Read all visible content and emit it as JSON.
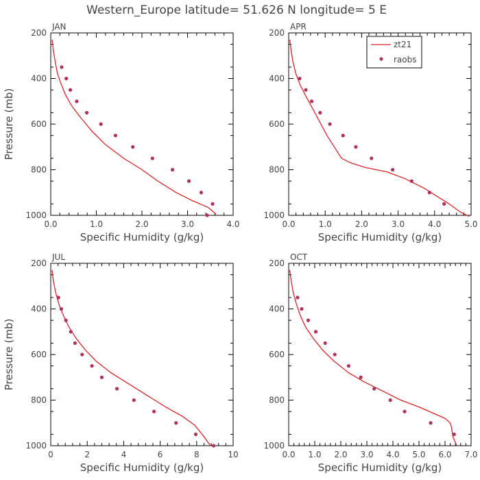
{
  "figure": {
    "title": "Western_Europe  latitude= 51.626 N longitude= 5 E"
  },
  "legend": {
    "position": "top-right of APR panel",
    "items": [
      {
        "label": "zt21",
        "kind": "line",
        "color": "#dd2222"
      },
      {
        "label": "raobs",
        "kind": "marker",
        "color": "#b03060"
      }
    ]
  },
  "colors": {
    "line": "#dd2222",
    "marker": "#b03060",
    "text": "#444444"
  },
  "chart_data": [
    {
      "type": "line",
      "title": "JAN",
      "xlabel": "Specific Humidity (g/kg)",
      "ylabel": "Pressure (mb)",
      "xlim": [
        0,
        4
      ],
      "ylim": [
        1000,
        200
      ],
      "xticks": [
        0,
        1,
        2,
        3,
        4
      ],
      "xtick_labels": [
        "0.0",
        "1.0",
        "2.0",
        "3.0",
        "4.0"
      ],
      "yticks": [
        200,
        400,
        600,
        800,
        1000
      ],
      "ytick_labels": [
        "200",
        "400",
        "600",
        "800",
        "1000"
      ],
      "series": [
        {
          "name": "zt21",
          "kind": "line",
          "x": [
            0.03,
            0.06,
            0.1,
            0.15,
            0.22,
            0.32,
            0.46,
            0.65,
            0.9,
            1.2,
            1.6,
            2.0,
            2.35,
            2.75,
            3.1,
            3.45,
            3.6,
            3.62
          ],
          "y": [
            230,
            280,
            330,
            380,
            420,
            470,
            520,
            570,
            630,
            690,
            750,
            800,
            850,
            900,
            935,
            965,
            990,
            995
          ]
        },
        {
          "name": "raobs",
          "kind": "marker",
          "x": [
            0.24,
            0.34,
            0.43,
            0.57,
            0.79,
            1.1,
            1.42,
            1.8,
            2.23,
            2.67,
            3.03,
            3.3,
            3.55,
            3.43
          ],
          "y": [
            350,
            400,
            450,
            500,
            550,
            600,
            650,
            700,
            750,
            800,
            850,
            900,
            950,
            1000
          ]
        }
      ]
    },
    {
      "type": "line",
      "title": "APR",
      "xlabel": "Specific Humidity (g/kg)",
      "ylabel": "",
      "xlim": [
        0,
        5
      ],
      "ylim": [
        1000,
        200
      ],
      "xticks": [
        0,
        1,
        2,
        3,
        4,
        5
      ],
      "xtick_labels": [
        "0.0",
        "1.0",
        "2.0",
        "3.0",
        "4.0",
        "5.0"
      ],
      "yticks": [
        200,
        400,
        600,
        800,
        1000
      ],
      "ytick_labels": [
        "200",
        "400",
        "600",
        "800",
        "1000"
      ],
      "series": [
        {
          "name": "zt21",
          "kind": "line",
          "x": [
            0.03,
            0.07,
            0.12,
            0.2,
            0.32,
            0.48,
            0.65,
            0.85,
            1.05,
            1.25,
            1.45,
            1.7,
            2.1,
            2.7,
            3.2,
            3.7,
            4.1,
            4.4,
            4.7,
            4.95
          ],
          "y": [
            230,
            280,
            330,
            380,
            430,
            480,
            530,
            590,
            650,
            700,
            750,
            770,
            790,
            810,
            840,
            880,
            920,
            950,
            985,
            1005
          ]
        },
        {
          "name": "raobs",
          "kind": "marker",
          "x": [
            0.3,
            0.47,
            0.63,
            0.86,
            1.13,
            1.49,
            1.84,
            2.27,
            2.85,
            3.37,
            3.86,
            4.26
          ],
          "y": [
            400,
            450,
            500,
            550,
            600,
            650,
            700,
            750,
            800,
            850,
            900,
            950
          ]
        }
      ]
    },
    {
      "type": "line",
      "title": "JUL",
      "xlabel": "Specific Humidity (g/kg)",
      "ylabel": "Pressure (mb)",
      "xlim": [
        0,
        10
      ],
      "ylim": [
        1000,
        200
      ],
      "xticks": [
        0,
        2,
        4,
        6,
        8,
        10
      ],
      "xtick_labels": [
        "0",
        "2",
        "4",
        "6",
        "8",
        "10"
      ],
      "yticks": [
        200,
        400,
        600,
        800,
        1000
      ],
      "ytick_labels": [
        "200",
        "400",
        "600",
        "800",
        "1000"
      ],
      "series": [
        {
          "name": "zt21",
          "kind": "line",
          "x": [
            0.07,
            0.15,
            0.28,
            0.45,
            0.7,
            1.0,
            1.4,
            1.9,
            2.5,
            3.3,
            4.3,
            5.3,
            6.3,
            7.2,
            7.9,
            8.4,
            8.75
          ],
          "y": [
            230,
            280,
            330,
            380,
            430,
            480,
            530,
            580,
            630,
            680,
            730,
            780,
            830,
            870,
            910,
            960,
            1000
          ]
        },
        {
          "name": "raobs",
          "kind": "marker",
          "x": [
            0.42,
            0.58,
            0.83,
            1.1,
            1.33,
            1.72,
            2.26,
            2.8,
            3.63,
            4.56,
            5.66,
            6.87,
            7.95,
            8.93
          ],
          "y": [
            350,
            400,
            450,
            500,
            550,
            600,
            650,
            700,
            750,
            800,
            850,
            900,
            950,
            1000
          ]
        }
      ]
    },
    {
      "type": "line",
      "title": "OCT",
      "xlabel": "Specific Humidity (g/kg)",
      "ylabel": "",
      "xlim": [
        0,
        7
      ],
      "ylim": [
        1000,
        200
      ],
      "xticks": [
        0,
        1,
        2,
        3,
        4,
        5,
        6,
        7
      ],
      "xtick_labels": [
        "0.0",
        "1.0",
        "2.0",
        "3.0",
        "4.0",
        "5.0",
        "6.0",
        "7.0"
      ],
      "yticks": [
        200,
        400,
        600,
        800,
        1000
      ],
      "ytick_labels": [
        "200",
        "400",
        "600",
        "800",
        "1000"
      ],
      "series": [
        {
          "name": "zt21",
          "kind": "line",
          "x": [
            0.04,
            0.1,
            0.18,
            0.3,
            0.45,
            0.65,
            0.95,
            1.3,
            1.75,
            2.3,
            2.9,
            3.6,
            4.3,
            5.0,
            5.6,
            6.0,
            6.2,
            6.25,
            6.3,
            6.45
          ],
          "y": [
            230,
            280,
            330,
            380,
            430,
            480,
            530,
            580,
            630,
            680,
            720,
            760,
            800,
            830,
            860,
            880,
            900,
            920,
            960,
            1000
          ]
        },
        {
          "name": "raobs",
          "kind": "marker",
          "x": [
            0.34,
            0.5,
            0.75,
            1.04,
            1.4,
            1.77,
            2.3,
            2.77,
            3.28,
            3.9,
            4.45,
            5.45,
            6.35
          ],
          "y": [
            350,
            400,
            450,
            500,
            550,
            600,
            650,
            700,
            750,
            800,
            850,
            900,
            950
          ]
        }
      ]
    }
  ]
}
